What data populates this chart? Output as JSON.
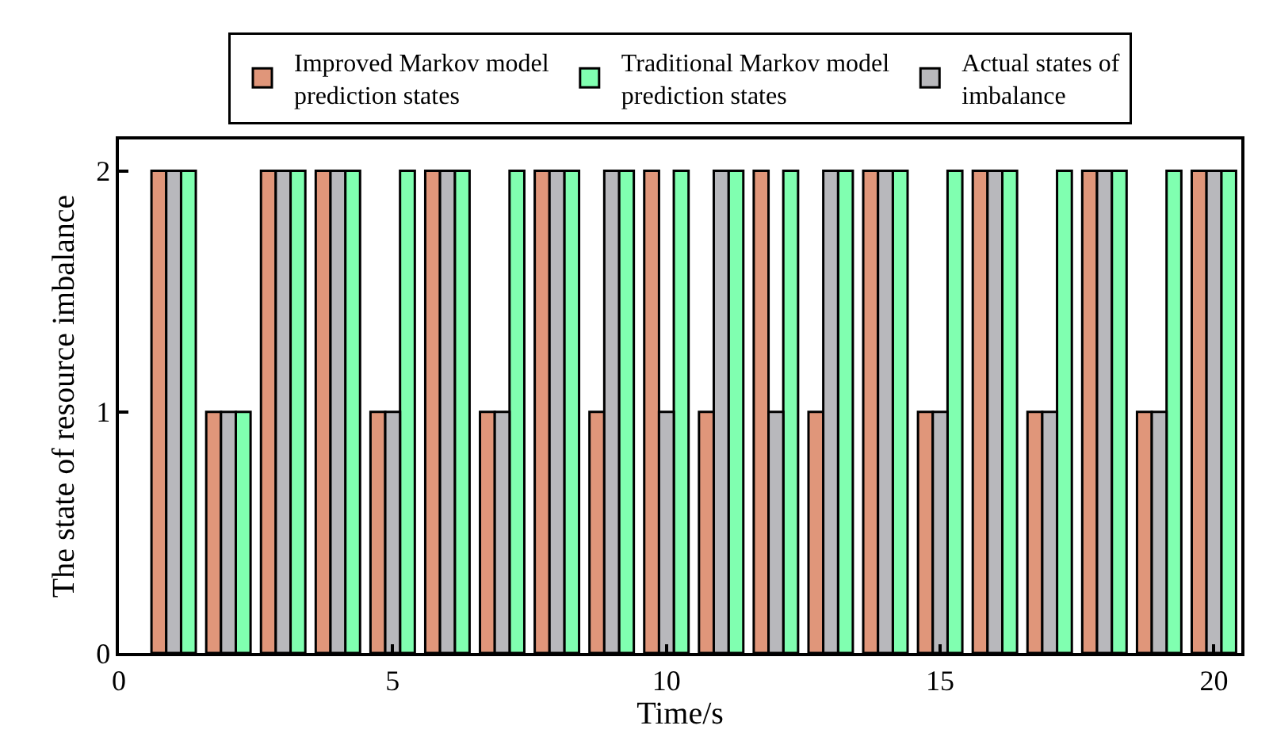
{
  "chart_data": {
    "type": "bar",
    "xlabel": "Time/s",
    "ylabel": "The state of resource imbalance",
    "x": [
      1,
      2,
      3,
      4,
      5,
      6,
      7,
      8,
      9,
      10,
      11,
      12,
      13,
      14,
      15,
      16,
      17,
      18,
      19,
      20
    ],
    "series": [
      {
        "name": "Improved Markov model prediction states",
        "color": "#e0967a",
        "values": [
          2,
          1,
          2,
          2,
          1,
          2,
          1,
          2,
          1,
          2,
          1,
          2,
          1,
          2,
          1,
          2,
          1,
          2,
          1,
          2
        ]
      },
      {
        "name": "Traditional Markov model prediction states",
        "color": "#80ffb0",
        "values": [
          2,
          1,
          2,
          2,
          2,
          2,
          2,
          2,
          2,
          2,
          2,
          2,
          2,
          2,
          2,
          2,
          2,
          2,
          2,
          2
        ]
      },
      {
        "name": "Actual states of imbalance",
        "color": "#b8b8bc",
        "values": [
          2,
          1,
          2,
          2,
          1,
          2,
          1,
          2,
          2,
          1,
          2,
          1,
          2,
          2,
          1,
          2,
          1,
          2,
          1,
          2
        ]
      }
    ],
    "xlim": [
      0,
      20.5
    ],
    "xticks": [
      0,
      5,
      10,
      15,
      20
    ],
    "ylim": [
      0,
      2.13
    ],
    "yticks": [
      0,
      1,
      2
    ],
    "legend": "top"
  }
}
